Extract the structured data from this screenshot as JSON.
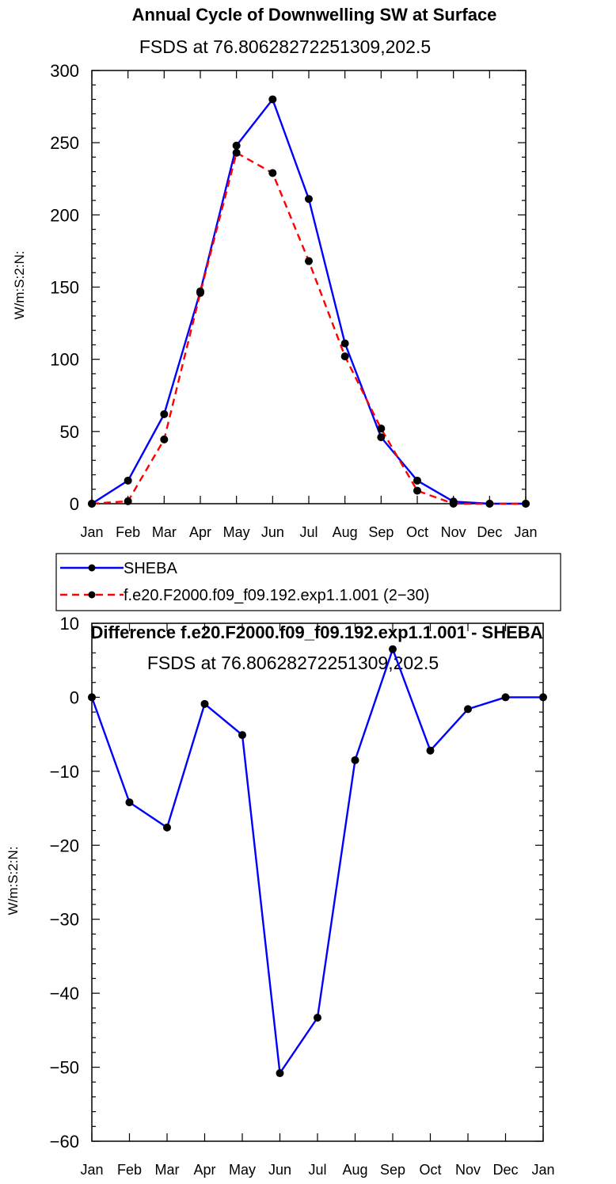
{
  "chart_data": [
    {
      "type": "line",
      "title": "Annual Cycle of Downwelling SW at Surface",
      "subtitle": "FSDS at 76.80628272251309,202.5",
      "xlabel": "",
      "ylabel": "W/m:S:2:N:",
      "categories": [
        "Jan",
        "Feb",
        "Mar",
        "Apr",
        "May",
        "Jun",
        "Jul",
        "Aug",
        "Sep",
        "Oct",
        "Nov",
        "Dec",
        "Jan"
      ],
      "ylim": [
        0,
        300
      ],
      "yticks": [
        "0",
        "50",
        "100",
        "150",
        "200",
        "250",
        "300"
      ],
      "series": [
        {
          "name": "SHEBA",
          "color": "#0000ff",
          "dash": "solid",
          "values": [
            0,
            16,
            62,
            147,
            248,
            280,
            211,
            111,
            46,
            16,
            1.5,
            0,
            0
          ]
        },
        {
          "name": "f.e20.F2000.f09_f09.192.exp1.1.001 (2−30)",
          "color": "#ff0000",
          "dash": "dashed",
          "values": [
            0,
            1.7,
            44.5,
            146,
            243,
            229,
            168,
            102,
            52,
            9,
            0,
            0,
            0
          ]
        }
      ],
      "legend_position": "below"
    },
    {
      "type": "line",
      "title": "Difference f.e20.F2000.f09_f09.192.exp1.1.001 - SHEBA",
      "subtitle": "FSDS at 76.80628272251309,202.5",
      "xlabel": "",
      "ylabel": "W/m:S:2:N:",
      "categories": [
        "Jan",
        "Feb",
        "Mar",
        "Apr",
        "May",
        "Jun",
        "Jul",
        "Aug",
        "Sep",
        "Oct",
        "Nov",
        "Dec",
        "Jan"
      ],
      "ylim": [
        -60,
        10
      ],
      "yticks": [
        "10",
        "0",
        "−10",
        "−20",
        "−30",
        "−40",
        "−50",
        "−60"
      ],
      "series": [
        {
          "color": "#0000ff",
          "dash": "solid",
          "values": [
            0,
            -14.2,
            -17.6,
            -0.9,
            -5.1,
            -50.8,
            -43.3,
            -8.5,
            6.5,
            -7.2,
            -1.6,
            0,
            0
          ]
        }
      ]
    }
  ]
}
